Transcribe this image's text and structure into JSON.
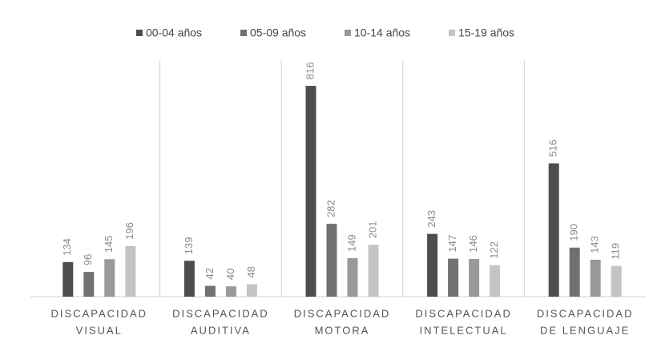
{
  "chart_data": {
    "type": "bar",
    "categories": [
      [
        "DISCAPACIDAD",
        "VISUAL"
      ],
      [
        "DISCAPACIDAD",
        "AUDITIVA"
      ],
      [
        "DISCAPACIDAD",
        "MOTORA"
      ],
      [
        "DISCAPACIDAD",
        "INTELECTUAL"
      ],
      [
        "DISCAPACIDAD",
        "DE LENGUAJE"
      ]
    ],
    "series": [
      {
        "name": "00-04 años",
        "color": "#4d4d4d",
        "values": [
          134,
          139,
          816,
          243,
          516
        ]
      },
      {
        "name": "05-09 años",
        "color": "#717171",
        "values": [
          96,
          42,
          282,
          147,
          190
        ]
      },
      {
        "name": "10-14 años",
        "color": "#999999",
        "values": [
          145,
          40,
          149,
          146,
          143
        ]
      },
      {
        "name": "15-19 años",
        "color": "#c4c4c4",
        "values": [
          196,
          48,
          201,
          122,
          119
        ]
      }
    ],
    "ylim": [
      0,
      900
    ],
    "legend": "top"
  }
}
